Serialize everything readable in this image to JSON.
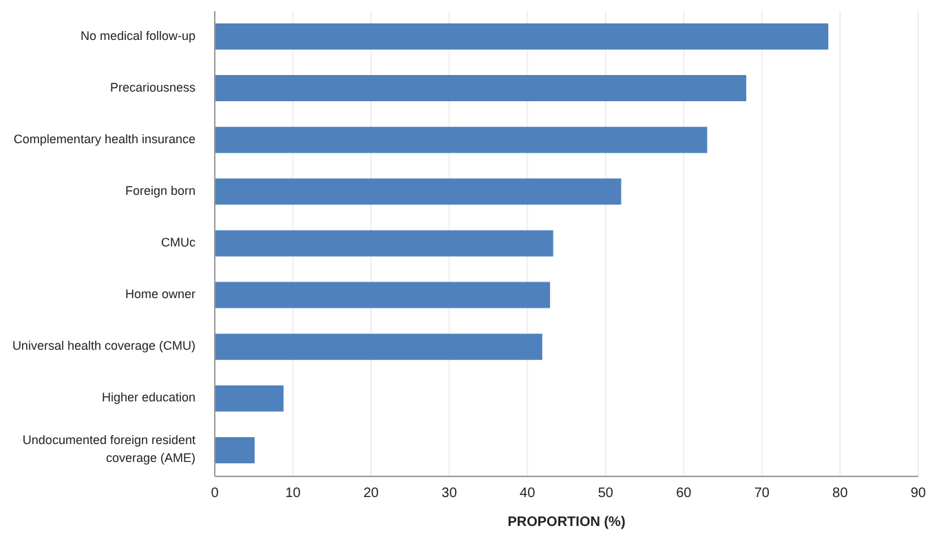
{
  "chart_data": {
    "type": "bar",
    "orientation": "horizontal",
    "xlabel": "PROPORTION (%)",
    "categories": [
      "No medical follow-up",
      "Precariousness",
      "Complementary health insurance",
      "Foreign born",
      "CMUc",
      "Home owner",
      "Universal health coverage (CMU)",
      "Higher education",
      "Undocumented foreign resident coverage (AME)"
    ],
    "values": [
      78.5,
      68,
      63,
      52,
      43.3,
      42.9,
      41.9,
      8.8,
      5.1
    ],
    "color": "#4f81bd",
    "xlim": [
      0,
      90
    ],
    "xticks": [
      0,
      10,
      20,
      30,
      40,
      50,
      60,
      70,
      80,
      90
    ],
    "grid": "x"
  }
}
